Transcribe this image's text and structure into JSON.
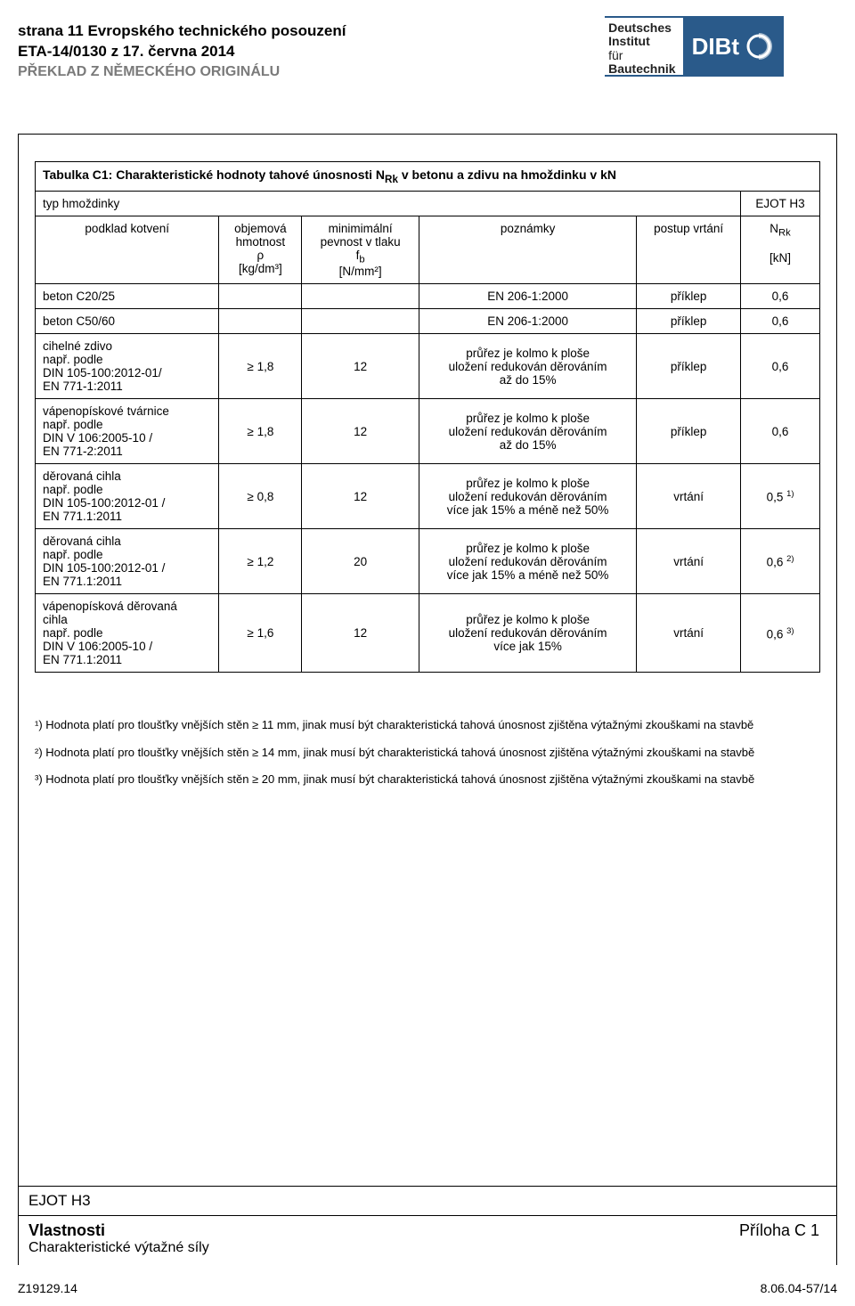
{
  "header": {
    "line1": "strana 11 Evropského technického posouzení",
    "line2": "ETA-14/0130 z 17. června 2014",
    "line3": "PŘEKLAD Z NĚMECKÉHO ORIGINÁLU",
    "logo_text_l1": "Deutsches",
    "logo_text_l2": "Institut",
    "logo_text_l3": "für",
    "logo_text_l4": "Bautechnik",
    "logo_brand": "DIBt"
  },
  "table": {
    "title": "Tabulka C1: Charakteristické hodnoty tahové únosnosti NRk v betonu a zdivu na hmoždinku v kN",
    "title_sub": "Rk",
    "type_label": "typ hmoždinky",
    "type_value": "EJOT H3",
    "hdr_anchor": "podklad kotvení",
    "hdr_density_l1": "objemová",
    "hdr_density_l2": "hmotnost",
    "hdr_density_l3": "ρ",
    "hdr_density_l4": "[kg/dm³]",
    "hdr_strength_l1": "minimimální",
    "hdr_strength_l2": "pevnost v tlaku",
    "hdr_strength_l3": "fb",
    "hdr_strength_sub": "b",
    "hdr_strength_l4": "[N/mm²]",
    "hdr_notes": "poznámky",
    "hdr_drill": "postup vrtání",
    "hdr_nrk_l1": "NRk",
    "hdr_nrk_sub": "Rk",
    "hdr_nrk_l2": "[kN]",
    "rows": [
      {
        "anchor": "beton C20/25",
        "density": "",
        "strength": "",
        "notes": "EN 206-1:2000",
        "drill": "příklep",
        "nrk": "0,6"
      },
      {
        "anchor": "beton C50/60",
        "density": "",
        "strength": "",
        "notes": "EN 206-1:2000",
        "drill": "příklep",
        "nrk": "0,6"
      },
      {
        "anchor": "cihelné zdivo\nnapř. podle\nDIN 105-100:2012-01/\nEN 771-1:2011",
        "density": "≥ 1,8",
        "strength": "12",
        "notes": "průřez je kolmo k ploše\nuložení redukován děrováním\naž do 15%",
        "drill": "příklep",
        "nrk": "0,6"
      },
      {
        "anchor": "vápenopískové tvárnice\nnapř. podle\nDIN V 106:2005-10 /\nEN 771-2:2011",
        "density": "≥ 1,8",
        "strength": "12",
        "notes": "průřez je kolmo k ploše\nuložení redukován děrováním\naž do 15%",
        "drill": "příklep",
        "nrk": "0,6"
      },
      {
        "anchor": "děrovaná cihla\nnapř. podle\nDIN 105-100:2012-01 /\nEN 771.1:2011",
        "density": "≥ 0,8",
        "strength": "12",
        "notes": "průřez je kolmo k ploše\nuložení redukován děrováním\nvíce jak 15% a méně než 50%",
        "drill": "vrtání",
        "nrk": "0,5 ",
        "nrksup": "1)"
      },
      {
        "anchor": "děrovaná cihla\nnapř. podle\nDIN 105-100:2012-01 /\nEN 771.1:2011",
        "density": "≥ 1,2",
        "strength": "20",
        "notes": "průřez je kolmo k ploše\nuložení redukován děrováním\nvíce jak 15% a méně než 50%",
        "drill": "vrtání",
        "nrk": "0,6 ",
        "nrksup": "2)"
      },
      {
        "anchor": "vápenopísková děrovaná\ncihla\nnapř. podle\nDIN V 106:2005-10 /\nEN 771.1:2011",
        "density": "≥ 1,6",
        "strength": "12",
        "notes": "průřez je kolmo k ploše\nuložení redukován děrováním\nvíce jak 15%",
        "drill": "vrtání",
        "nrk": "0,6 ",
        "nrksup": "3)"
      }
    ]
  },
  "footnotes": {
    "f1": "¹) Hodnota platí pro tloušťky vnějších stěn ≥ 11 mm, jinak musí být charakteristická tahová únosnost zjištěna výtažnými zkouškami na stavbě",
    "f2": "²) Hodnota platí pro tloušťky vnějších stěn ≥ 14 mm, jinak musí být charakteristická tahová únosnost zjištěna výtažnými zkouškami na stavbě",
    "f3": "³) Hodnota platí pro tloušťky vnějších stěn ≥ 20 mm, jinak musí být charakteristická tahová únosnost zjištěna výtažnými zkouškami na stavbě"
  },
  "bottom": {
    "product": "EJOT H3",
    "prop": "Vlastnosti",
    "propsub": "Charakteristické výtažné síly",
    "appendix": "Příloha C 1"
  },
  "footer": {
    "left": "Z19129.14",
    "right": "8.06.04-57/14"
  },
  "style": {
    "body_bg": "#ffffff",
    "header_gray": "#7a7a7a",
    "brand_blue": "#2a5a8a",
    "font_body": "13.5",
    "font_header": "17"
  }
}
